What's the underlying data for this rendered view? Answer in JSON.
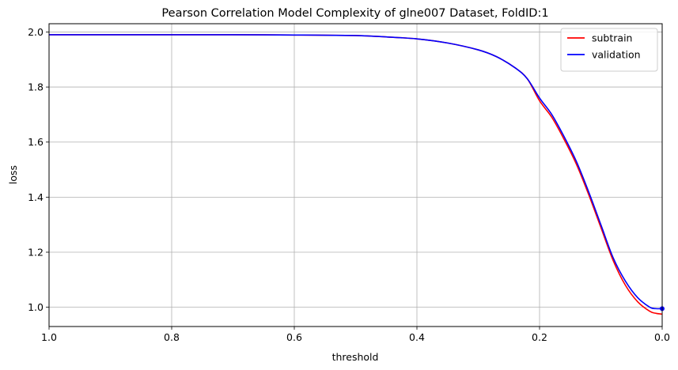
{
  "chart_data": {
    "type": "line",
    "title": "Pearson Correlation Model Complexity of glne007 Dataset, FoldID:1",
    "xlabel": "threshold",
    "ylabel": "loss",
    "xlim": [
      1.0,
      0.0
    ],
    "ylim": [
      0.93,
      2.03
    ],
    "x_inverted": true,
    "grid": true,
    "legend": "top-right",
    "xticks": [
      "1.0",
      "0.8",
      "0.6",
      "0.4",
      "0.2",
      "0.0"
    ],
    "yticks": [
      "1.0",
      "1.2",
      "1.4",
      "1.6",
      "1.8",
      "2.0"
    ],
    "series": [
      {
        "name": "subtrain",
        "color": "#ff0000",
        "x": [
          1.0,
          0.9,
          0.8,
          0.7,
          0.6,
          0.5,
          0.45,
          0.4,
          0.35,
          0.3,
          0.27,
          0.24,
          0.22,
          0.2,
          0.18,
          0.16,
          0.14,
          0.12,
          0.1,
          0.08,
          0.06,
          0.04,
          0.02,
          0.01,
          0.0
        ],
        "y": [
          1.99,
          1.99,
          1.99,
          1.99,
          1.989,
          1.987,
          1.982,
          1.975,
          1.96,
          1.935,
          1.91,
          1.87,
          1.83,
          1.75,
          1.69,
          1.61,
          1.52,
          1.41,
          1.29,
          1.17,
          1.08,
          1.02,
          0.985,
          0.978,
          0.975
        ]
      },
      {
        "name": "validation",
        "color": "#0000ff",
        "x": [
          1.0,
          0.9,
          0.8,
          0.7,
          0.6,
          0.5,
          0.45,
          0.4,
          0.35,
          0.3,
          0.27,
          0.24,
          0.22,
          0.2,
          0.18,
          0.16,
          0.14,
          0.12,
          0.1,
          0.08,
          0.06,
          0.04,
          0.02,
          0.01,
          0.0
        ],
        "y": [
          1.99,
          1.99,
          1.99,
          1.99,
          1.989,
          1.987,
          1.982,
          1.975,
          1.96,
          1.935,
          1.91,
          1.87,
          1.83,
          1.76,
          1.7,
          1.62,
          1.53,
          1.42,
          1.3,
          1.18,
          1.095,
          1.035,
          1.0,
          0.995,
          0.995
        ],
        "marker_at_end": true
      }
    ]
  }
}
